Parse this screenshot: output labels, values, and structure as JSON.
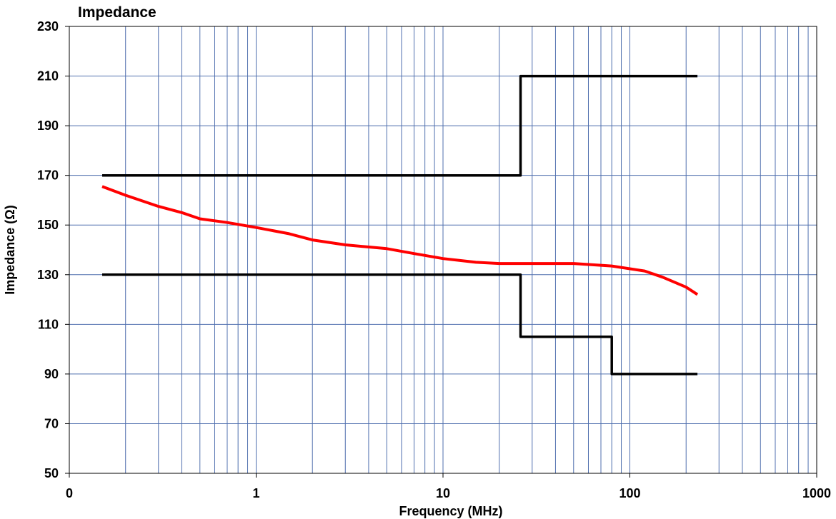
{
  "chart_data": {
    "type": "line",
    "title": "Impedance",
    "xlabel": "Frequency (MHz)",
    "ylabel": "Impedance (Ω)",
    "x_scale": "log",
    "xlim": [
      0.1,
      1000
    ],
    "ylim": [
      50,
      230
    ],
    "x_tick_labels": [
      "0",
      "1",
      "10",
      "100",
      "1000"
    ],
    "y_ticks": [
      50,
      70,
      90,
      110,
      130,
      150,
      170,
      190,
      210,
      230
    ],
    "grid": true,
    "legend": "none",
    "colors": {
      "title": "#ff0000",
      "measured": "#ff0000",
      "limits": "#000000",
      "grid": "#4f6fae"
    },
    "series": [
      {
        "role": "measured",
        "color": "#ff0000",
        "x": [
          0.15,
          0.2,
          0.3,
          0.4,
          0.5,
          0.7,
          1,
          1.5,
          2,
          3,
          5,
          7,
          10,
          15,
          20,
          30,
          50,
          80,
          120,
          150,
          200,
          230
        ],
        "y": [
          165.5,
          162,
          157.5,
          155,
          152.5,
          151,
          149,
          146.5,
          144,
          142,
          140.5,
          138.5,
          136.5,
          135,
          134.5,
          134.5,
          134.5,
          133.5,
          131.5,
          129,
          125,
          122
        ]
      },
      {
        "role": "upper-limit",
        "color": "#000000",
        "x": [
          0.15,
          26,
          26,
          230
        ],
        "y": [
          170,
          170,
          210,
          210
        ]
      },
      {
        "role": "lower-limit",
        "color": "#000000",
        "x": [
          0.15,
          26,
          26,
          80,
          80,
          230
        ],
        "y": [
          130,
          130,
          105,
          105,
          90,
          90
        ]
      }
    ]
  }
}
